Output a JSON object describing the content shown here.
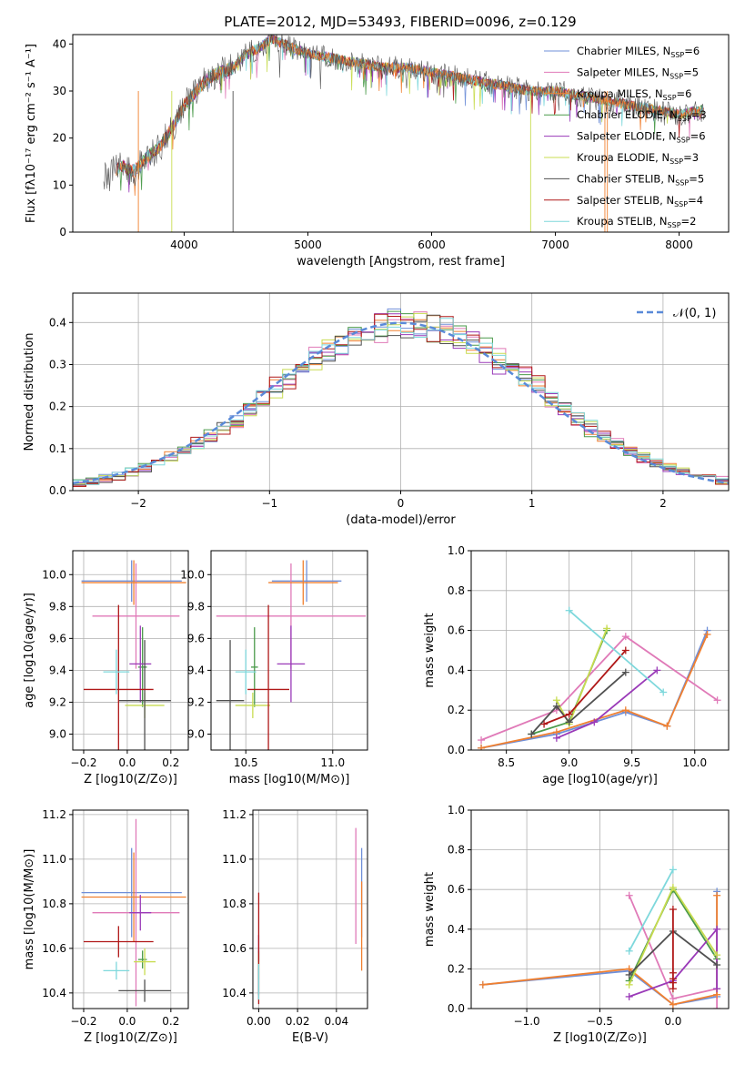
{
  "title": "PLATE=2012, MJD=53493, FIBERID=0096, z=0.129",
  "colors": [
    "#6f8fd8",
    "#e07ab8",
    "#f08030",
    "#4a9a4a",
    "#9a3ab8",
    "#c8dc50",
    "#505050",
    "#b01818",
    "#7ed8dc"
  ],
  "legend_spec": {
    "labels": [
      "Chabrier MILES, N",
      "Salpeter MILES, N",
      "Kroupa MILES, N",
      "Chabrier ELODIE, N",
      "Salpeter ELODIE, N",
      "Kroupa ELODIE, N",
      "Chabrier STELIB, N",
      "Salpeter STELIB, N",
      "Kroupa STELIB, N"
    ],
    "sub": "SSP",
    "nssp": [
      "=6",
      "=5",
      "=6",
      "=3",
      "=6",
      "=3",
      "=5",
      "=4",
      "=2"
    ]
  },
  "legend_resid": "𝒩(0, 1)",
  "chart_data": [
    {
      "id": "spectrum",
      "type": "line",
      "xlabel": "wavelength [Angstrom, rest frame]",
      "ylabel": "Flux [fλ10⁻¹⁷ erg cm⁻² s⁻¹ A⁻¹]",
      "xlim": [
        3100,
        8400
      ],
      "ylim": [
        0,
        42
      ],
      "xticks": [
        "4000",
        "5000",
        "6000",
        "7000",
        "8000"
      ],
      "yticks": [
        "0",
        "10",
        "20",
        "30",
        "40"
      ],
      "x": [
        3350,
        3500,
        3600,
        3700,
        3800,
        3900,
        4000,
        4100,
        4200,
        4300,
        4400,
        4500,
        4600,
        4700,
        4800,
        4900,
        5000,
        5200,
        5400,
        5600,
        5800,
        6000,
        6200,
        6400,
        6600,
        6800,
        7000,
        7200,
        7400,
        7600,
        7800,
        8000,
        8200
      ],
      "y": [
        12,
        14,
        13,
        16,
        18,
        22,
        27,
        30,
        33,
        34,
        35,
        38,
        39,
        41,
        40,
        39,
        38,
        37,
        36,
        35,
        35,
        34,
        33,
        32,
        31,
        30,
        30,
        29,
        28,
        27,
        26,
        25,
        26
      ]
    },
    {
      "id": "residuals",
      "type": "line",
      "xlabel": "(data-model)/error",
      "ylabel": "Normed distribution",
      "xlim": [
        -2.5,
        2.5
      ],
      "ylim": [
        0,
        0.47
      ],
      "xticks": [
        "−2",
        "−1",
        "0",
        "1",
        "2"
      ],
      "yticks": [
        "0.0",
        "0.1",
        "0.2",
        "0.3",
        "0.4"
      ],
      "series": [
        {
          "name": "𝒩(0, 1)",
          "mean": 0,
          "sigma": 1
        }
      ]
    },
    {
      "id": "age-vs-Z",
      "type": "scatter",
      "xlabel": "Z [log10(Z/Z⊙)]",
      "ylabel": "age  [log10(age/yr)]",
      "xlim": [
        -0.25,
        0.28
      ],
      "ylim": [
        8.9,
        10.15
      ],
      "xticks": [
        "−0.2",
        "0.0",
        "0.2"
      ],
      "yticks": [
        "9.0",
        "9.2",
        "9.4",
        "9.6",
        "9.8",
        "10.0"
      ],
      "points": [
        {
          "x": 0.02,
          "y": 9.96,
          "xerr": 0.23,
          "yerr": 0.13
        },
        {
          "x": 0.04,
          "y": 9.74,
          "xerr": 0.2,
          "yerr": 0.33
        },
        {
          "x": 0.03,
          "y": 9.95,
          "xerr": 0.24,
          "yerr": 0.14
        },
        {
          "x": 0.07,
          "y": 9.42,
          "xerr": 0.02,
          "yerr": 0.25
        },
        {
          "x": 0.06,
          "y": 9.44,
          "xerr": 0.05,
          "yerr": 0.24
        },
        {
          "x": 0.08,
          "y": 9.18,
          "xerr": 0.09,
          "yerr": 0.08
        },
        {
          "x": 0.08,
          "y": 9.21,
          "xerr": 0.12,
          "yerr": 0.38
        },
        {
          "x": -0.04,
          "y": 9.28,
          "xerr": 0.16,
          "yerr": 0.53
        },
        {
          "x": -0.05,
          "y": 9.39,
          "xerr": 0.06,
          "yerr": 0.14
        }
      ]
    },
    {
      "id": "age-vs-mass",
      "type": "scatter",
      "xlabel": "mass [log10(M/M⊙)]",
      "ylabel": "",
      "xlim": [
        10.3,
        11.2
      ],
      "ylim": [
        8.9,
        10.15
      ],
      "xticks": [
        "10.5",
        "11.0"
      ],
      "yticks": [
        "9.0",
        "9.2",
        "9.4",
        "9.6",
        "9.8",
        "10.0"
      ],
      "points": [
        {
          "x": 10.85,
          "y": 9.96,
          "xerr": 0.2,
          "yerr": 0.13
        },
        {
          "x": 10.76,
          "y": 9.74,
          "xerr": 0.43,
          "yerr": 0.33
        },
        {
          "x": 10.83,
          "y": 9.95,
          "xerr": 0.2,
          "yerr": 0.14
        },
        {
          "x": 10.55,
          "y": 9.42,
          "xerr": 0.02,
          "yerr": 0.25
        },
        {
          "x": 10.76,
          "y": 9.44,
          "xerr": 0.08,
          "yerr": 0.24
        },
        {
          "x": 10.54,
          "y": 9.18,
          "xerr": 0.1,
          "yerr": 0.08
        },
        {
          "x": 10.41,
          "y": 9.21,
          "xerr": 0.08,
          "yerr": 0.38
        },
        {
          "x": 10.63,
          "y": 9.28,
          "xerr": 0.12,
          "yerr": 0.53
        },
        {
          "x": 10.5,
          "y": 9.39,
          "xerr": 0.06,
          "yerr": 0.14
        }
      ]
    },
    {
      "id": "massweight-vs-age",
      "type": "line",
      "xlabel": "age  [log10(age/yr)]",
      "ylabel": "mass weight",
      "xlim": [
        8.22,
        10.27
      ],
      "ylim": [
        0,
        1
      ],
      "xticks": [
        "8.5",
        "9.0",
        "9.5",
        "10.0"
      ],
      "yticks": [
        "0.0",
        "0.2",
        "0.4",
        "0.6",
        "0.8",
        "1.0"
      ],
      "series": [
        {
          "x": [
            8.3,
            8.9,
            9.45,
            9.78,
            10.1
          ],
          "y": [
            0.01,
            0.08,
            0.19,
            0.12,
            0.6
          ]
        },
        {
          "x": [
            8.3,
            8.9,
            9.45,
            10.18
          ],
          "y": [
            0.05,
            0.2,
            0.57,
            0.25
          ]
        },
        {
          "x": [
            8.3,
            8.9,
            9.45,
            9.78,
            10.1
          ],
          "y": [
            0.01,
            0.09,
            0.2,
            0.12,
            0.58
          ]
        },
        {
          "x": [
            8.7,
            9.0,
            9.3
          ],
          "y": [
            0.08,
            0.14,
            0.6
          ]
        },
        {
          "x": [
            8.9,
            9.2,
            9.7
          ],
          "y": [
            0.06,
            0.14,
            0.4
          ]
        },
        {
          "x": [
            8.9,
            9.0,
            9.3
          ],
          "y": [
            0.25,
            0.13,
            0.61
          ]
        },
        {
          "x": [
            8.7,
            8.9,
            9.0,
            9.45
          ],
          "y": [
            0.08,
            0.22,
            0.14,
            0.39
          ]
        },
        {
          "x": [
            8.8,
            9.0,
            9.45
          ],
          "y": [
            0.13,
            0.18,
            0.5
          ]
        },
        {
          "x": [
            9.0,
            9.75
          ],
          "y": [
            0.7,
            0.29
          ]
        }
      ]
    },
    {
      "id": "mass-vs-Z",
      "type": "scatter",
      "xlabel": "Z [log10(Z/Z⊙)]",
      "ylabel": "mass [log10(M/M⊙)]",
      "xlim": [
        -0.25,
        0.28
      ],
      "ylim": [
        10.33,
        11.22
      ],
      "xticks": [
        "−0.2",
        "0.0",
        "0.2"
      ],
      "yticks": [
        "10.4",
        "10.6",
        "10.8",
        "11.0",
        "11.2"
      ],
      "points": [
        {
          "x": 0.02,
          "y": 10.85,
          "xerr": 0.23,
          "yerr": 0.2
        },
        {
          "x": 0.04,
          "y": 10.76,
          "xerr": 0.2,
          "yerr": 0.42
        },
        {
          "x": 0.03,
          "y": 10.83,
          "xerr": 0.24,
          "yerr": 0.2
        },
        {
          "x": 0.07,
          "y": 10.55,
          "xerr": 0.02,
          "yerr": 0.04
        },
        {
          "x": 0.06,
          "y": 10.76,
          "xerr": 0.05,
          "yerr": 0.08
        },
        {
          "x": 0.08,
          "y": 10.54,
          "xerr": 0.05,
          "yerr": 0.06
        },
        {
          "x": 0.08,
          "y": 10.41,
          "xerr": 0.12,
          "yerr": 0.05
        },
        {
          "x": -0.04,
          "y": 10.63,
          "xerr": 0.16,
          "yerr": 0.07
        },
        {
          "x": -0.05,
          "y": 10.5,
          "xerr": 0.06,
          "yerr": 0.04
        }
      ]
    },
    {
      "id": "mass-vs-EBV",
      "type": "scatter",
      "xlabel": "E(B-V)",
      "ylabel": "",
      "xlim": [
        -0.003,
        0.056
      ],
      "ylim": [
        10.33,
        11.22
      ],
      "xticks": [
        "0.00",
        "0.02",
        "0.04"
      ],
      "yticks": [
        "10.4",
        "10.6",
        "10.8",
        "11.0",
        "11.2"
      ],
      "points": [
        {
          "x": 0.053,
          "y": 10.85,
          "yerr": 0.2
        },
        {
          "x": 0.05,
          "y": 10.88,
          "yerr": 0.26
        },
        {
          "x": 0.053,
          "y": 10.7,
          "yerr": 0.2
        },
        {
          "x": 0.0,
          "y": 10.55,
          "yerr": 0.04
        },
        {
          "x": 0.0,
          "y": 10.6,
          "yerr": 0.06
        },
        {
          "x": 0.0,
          "y": 10.52,
          "yerr": 0.06
        },
        {
          "x": 0.0,
          "y": 10.45,
          "yerr": 0.06
        },
        {
          "x": 0.0,
          "y": 10.6,
          "yerr": 0.25
        },
        {
          "x": 0.0,
          "y": 10.45,
          "yerr": 0.08
        }
      ]
    },
    {
      "id": "massweight-vs-Z",
      "type": "line",
      "xlabel": "Z [log10(Z/Z⊙)]",
      "ylabel": "mass weight",
      "xlim": [
        -1.38,
        0.38
      ],
      "ylim": [
        0,
        1
      ],
      "xticks": [
        "−1.0",
        "−0.5",
        "0.0"
      ],
      "yticks": [
        "0.0",
        "0.2",
        "0.4",
        "0.6",
        "0.8",
        "1.0"
      ],
      "series": [
        {
          "x": [
            -1.3,
            -0.3,
            0.0,
            0.3,
            0.3
          ],
          "y": [
            0.12,
            0.19,
            0.02,
            0.06,
            0.59
          ]
        },
        {
          "x": [
            -0.3,
            0.0,
            0.3,
            0.3
          ],
          "y": [
            0.57,
            0.05,
            0.1,
            0.0
          ]
        },
        {
          "x": [
            -1.3,
            -0.3,
            0.0,
            0.3,
            0.3
          ],
          "y": [
            0.12,
            0.2,
            0.02,
            0.07,
            0.57
          ]
        },
        {
          "x": [
            -0.3,
            0.0,
            0.3
          ],
          "y": [
            0.14,
            0.6,
            0.25
          ]
        },
        {
          "x": [
            -0.3,
            0.0,
            0.3,
            0.3
          ],
          "y": [
            0.06,
            0.14,
            0.4,
            0.1
          ]
        },
        {
          "x": [
            -0.3,
            0.0,
            0.3
          ],
          "y": [
            0.12,
            0.61,
            0.27
          ]
        },
        {
          "x": [
            -0.3,
            0.0,
            0.3
          ],
          "y": [
            0.17,
            0.39,
            0.22
          ]
        },
        {
          "x": [
            0.0,
            0.0,
            0.0,
            0.0,
            0.0
          ],
          "y": [
            0.13,
            0.18,
            0.5,
            0.15,
            0.1
          ]
        },
        {
          "x": [
            -0.3,
            0.0
          ],
          "y": [
            0.29,
            0.7
          ]
        }
      ]
    }
  ]
}
